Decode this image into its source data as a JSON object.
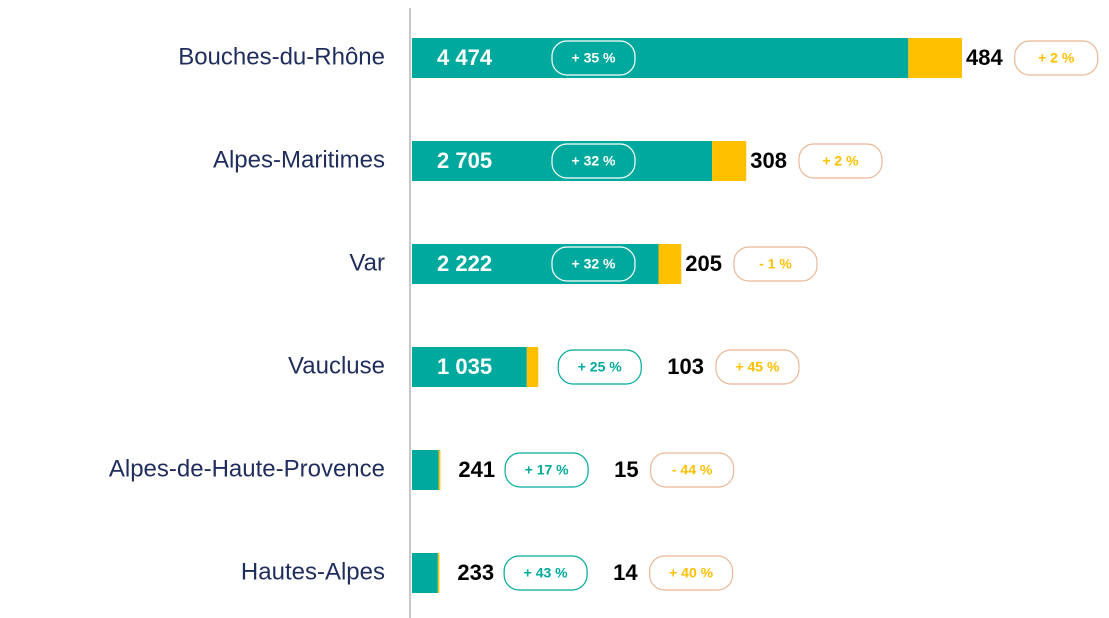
{
  "chart_data": {
    "type": "bar",
    "orientation": "horizontal",
    "stacked": true,
    "categories": [
      "Bouches-du-Rhône",
      "Alpes-Maritimes",
      "Var",
      "Vaucluse",
      "Alpes-de-Haute-Provence",
      "Hautes-Alpes"
    ],
    "series": [
      {
        "color": "#00a99d",
        "values": [
          4474,
          2705,
          2222,
          1035,
          241,
          233
        ],
        "value_labels": [
          "4 474",
          "2 705",
          "2 222",
          "1 035",
          "241",
          "233"
        ],
        "change_labels": [
          "+ 35 %",
          "+ 32 %",
          "+ 32 %",
          "+ 25 %",
          "+ 17 %",
          "+ 43 %"
        ]
      },
      {
        "color": "#ffc000",
        "values": [
          484,
          308,
          205,
          103,
          15,
          14
        ],
        "change_labels": [
          "+ 2 %",
          "+ 2 %",
          "- 1 %",
          "+ 45 %",
          "- 44 %",
          "+ 40 %"
        ]
      }
    ]
  }
}
